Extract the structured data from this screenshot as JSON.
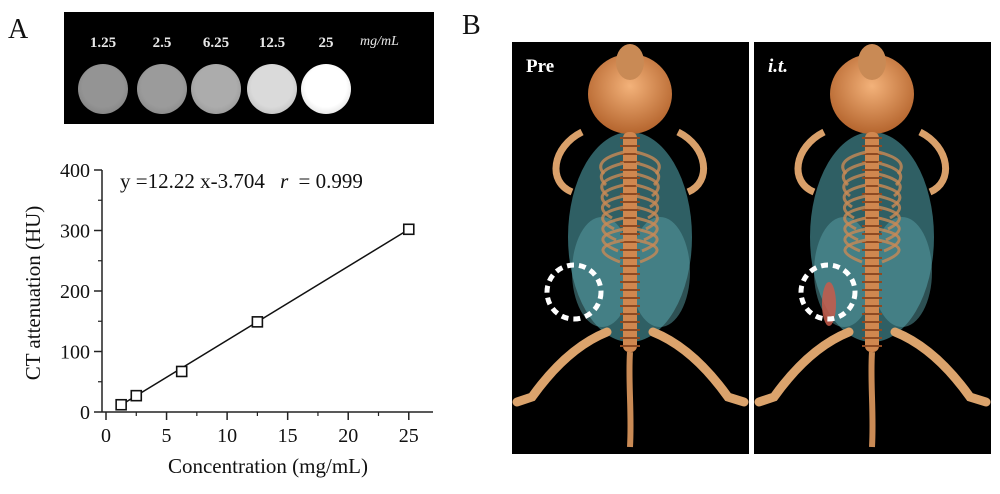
{
  "panel_a_label": "A",
  "panel_b_label": "B",
  "phantom": {
    "concentrations": [
      "1.25",
      "2.5",
      "6.25",
      "12.5",
      "25"
    ],
    "unit": "mg/mL",
    "brightness": [
      0.42,
      0.46,
      0.55,
      0.8,
      1.0
    ]
  },
  "chart_data": {
    "type": "scatter",
    "equation": "y =12.22 x-3.704",
    "r_label": "r",
    "r_value": "= 0.999",
    "xlabel": "Concentration (mg/mL)",
    "ylabel": "CT attenuation (HU)",
    "xlim": [
      0,
      27
    ],
    "ylim": [
      0,
      400
    ],
    "xticks": [
      0,
      5,
      10,
      15,
      20,
      25
    ],
    "yticks": [
      0,
      100,
      200,
      300,
      400
    ],
    "points": [
      {
        "x": 1.25,
        "y": 12
      },
      {
        "x": 2.5,
        "y": 27
      },
      {
        "x": 6.25,
        "y": 67
      },
      {
        "x": 12.5,
        "y": 149
      },
      {
        "x": 25,
        "y": 302
      }
    ],
    "fit": {
      "slope": 12.22,
      "intercept": -3.704,
      "x_range": [
        1.25,
        25
      ]
    },
    "marker": "open-square",
    "grid": false
  },
  "ct_panels": [
    {
      "label": "Pre"
    },
    {
      "label": "i.t."
    }
  ]
}
